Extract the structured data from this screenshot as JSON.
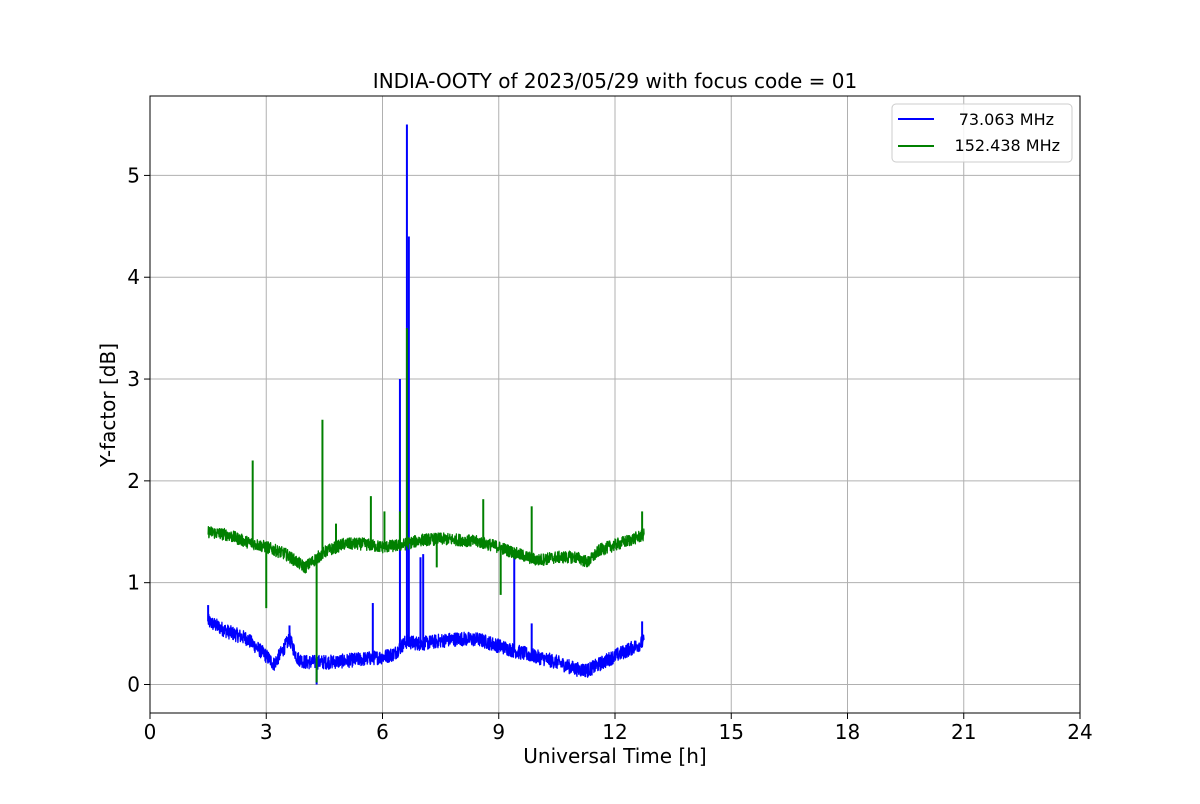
{
  "chart_data": {
    "type": "line",
    "title": "INDIA-OOTY of 2023/05/29 with focus code = 01",
    "xlabel": "Universal Time [h]",
    "ylabel": "Y-factor [dB]",
    "xlim": [
      0,
      24
    ],
    "ylim": [
      -0.28,
      5.78
    ],
    "xticks": [
      0,
      3,
      6,
      9,
      12,
      15,
      18,
      21,
      24
    ],
    "yticks": [
      0,
      1,
      2,
      3,
      4,
      5
    ],
    "grid": true,
    "legend_position": "top-right",
    "series": [
      {
        "name": "73.063 MHz",
        "color": "#0000ff",
        "baseline": [
          [
            1.5,
            0.62
          ],
          [
            2.0,
            0.52
          ],
          [
            2.5,
            0.45
          ],
          [
            3.0,
            0.28
          ],
          [
            3.2,
            0.2
          ],
          [
            3.4,
            0.32
          ],
          [
            3.6,
            0.45
          ],
          [
            3.8,
            0.26
          ],
          [
            4.0,
            0.22
          ],
          [
            4.3,
            0.22
          ],
          [
            4.6,
            0.22
          ],
          [
            5.0,
            0.23
          ],
          [
            5.5,
            0.25
          ],
          [
            6.0,
            0.27
          ],
          [
            6.3,
            0.3
          ],
          [
            6.6,
            0.42
          ],
          [
            7.0,
            0.4
          ],
          [
            7.5,
            0.43
          ],
          [
            8.0,
            0.45
          ],
          [
            8.5,
            0.44
          ],
          [
            9.0,
            0.38
          ],
          [
            9.5,
            0.32
          ],
          [
            10.0,
            0.27
          ],
          [
            10.5,
            0.22
          ],
          [
            11.0,
            0.15
          ],
          [
            11.3,
            0.14
          ],
          [
            11.6,
            0.2
          ],
          [
            12.0,
            0.28
          ],
          [
            12.4,
            0.35
          ],
          [
            12.75,
            0.42
          ]
        ],
        "noise": 0.07,
        "spikes": [
          [
            1.5,
            0.78
          ],
          [
            3.6,
            0.58
          ],
          [
            4.3,
            0.0
          ],
          [
            5.75,
            0.8
          ],
          [
            6.45,
            3.0
          ],
          [
            6.63,
            5.5
          ],
          [
            6.68,
            4.4
          ],
          [
            6.98,
            1.25
          ],
          [
            7.05,
            1.28
          ],
          [
            9.4,
            1.3
          ],
          [
            9.85,
            0.6
          ],
          [
            12.7,
            0.62
          ]
        ]
      },
      {
        "name": "152.438 MHz",
        "color": "#008000",
        "baseline": [
          [
            1.5,
            1.5
          ],
          [
            2.0,
            1.47
          ],
          [
            2.5,
            1.4
          ],
          [
            3.0,
            1.35
          ],
          [
            3.5,
            1.28
          ],
          [
            4.0,
            1.15
          ],
          [
            4.5,
            1.3
          ],
          [
            5.0,
            1.38
          ],
          [
            5.5,
            1.38
          ],
          [
            6.0,
            1.35
          ],
          [
            6.5,
            1.37
          ],
          [
            7.0,
            1.42
          ],
          [
            7.5,
            1.43
          ],
          [
            8.0,
            1.42
          ],
          [
            8.5,
            1.4
          ],
          [
            9.0,
            1.35
          ],
          [
            9.5,
            1.28
          ],
          [
            10.0,
            1.22
          ],
          [
            10.5,
            1.25
          ],
          [
            11.0,
            1.25
          ],
          [
            11.3,
            1.2
          ],
          [
            11.6,
            1.32
          ],
          [
            12.0,
            1.37
          ],
          [
            12.4,
            1.42
          ],
          [
            12.75,
            1.47
          ]
        ],
        "noise": 0.06,
        "spikes": [
          [
            2.65,
            2.2
          ],
          [
            3.0,
            0.75
          ],
          [
            4.3,
            0.02
          ],
          [
            4.45,
            2.6
          ],
          [
            4.8,
            1.58
          ],
          [
            5.7,
            1.85
          ],
          [
            6.05,
            1.7
          ],
          [
            6.45,
            1.7
          ],
          [
            6.63,
            3.5
          ],
          [
            7.4,
            1.15
          ],
          [
            8.6,
            1.82
          ],
          [
            9.05,
            0.88
          ],
          [
            9.85,
            1.75
          ],
          [
            12.7,
            1.7
          ]
        ]
      }
    ]
  }
}
